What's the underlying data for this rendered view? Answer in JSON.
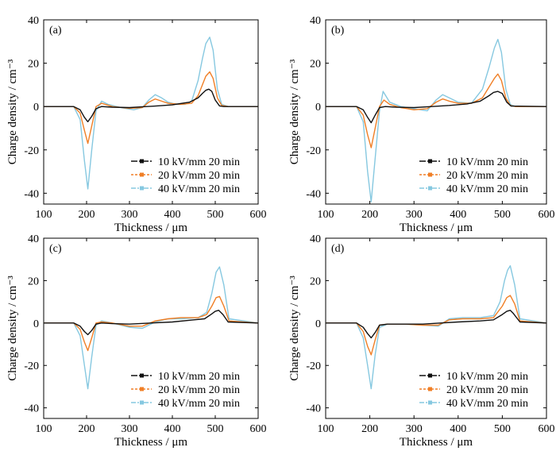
{
  "colors": {
    "series_10": "#111111",
    "series_20": "#f07f26",
    "series_40": "#86c8e0",
    "axis": "#000000"
  },
  "chart_data": [
    {
      "type": "line",
      "panel_label": "(a)",
      "xlabel": "Thickness / μm",
      "ylabel": "Charge density / cm⁻³",
      "xlim": [
        100,
        600
      ],
      "ylim": [
        -45,
        40
      ],
      "xticks": [
        100,
        200,
        300,
        400,
        500,
        600
      ],
      "yticks": [
        -40,
        -20,
        0,
        20,
        40
      ],
      "legend_position": "bottom-right",
      "series": [
        {
          "name": "10 kV/mm 20 min",
          "color_key": "series_10",
          "x": [
            100,
            170,
            185,
            195,
            203,
            212,
            222,
            235,
            260,
            300,
            340,
            360,
            380,
            400,
            440,
            460,
            470,
            478,
            485,
            492,
            500,
            510,
            520,
            600
          ],
          "y": [
            0,
            0,
            -1.5,
            -5,
            -7,
            -4.5,
            -1,
            0,
            -0.3,
            -0.5,
            0,
            0.2,
            0.5,
            0.8,
            2,
            4,
            6,
            7.5,
            8,
            7,
            3,
            0.3,
            0,
            0
          ]
        },
        {
          "name": "20 kV/mm 20 min",
          "color_key": "series_20",
          "x": [
            100,
            170,
            185,
            195,
            203,
            212,
            222,
            235,
            260,
            300,
            330,
            345,
            360,
            375,
            390,
            420,
            445,
            460,
            470,
            478,
            487,
            495,
            505,
            515,
            530,
            600
          ],
          "y": [
            0,
            0,
            -3,
            -11,
            -17,
            -9,
            0,
            1.5,
            0,
            -0.8,
            -0.5,
            2,
            3.5,
            2.5,
            1.5,
            1,
            1.5,
            5,
            10,
            14,
            16,
            13,
            4,
            0.5,
            0,
            0
          ]
        },
        {
          "name": "40 kV/mm 20 min",
          "color_key": "series_40",
          "x": [
            100,
            170,
            185,
            195,
            203,
            212,
            222,
            235,
            250,
            280,
            310,
            330,
            345,
            360,
            375,
            390,
            410,
            430,
            445,
            460,
            470,
            478,
            487,
            495,
            505,
            515,
            530,
            600
          ],
          "y": [
            0,
            0,
            -6,
            -25,
            -38,
            -20,
            -2,
            2.5,
            1,
            -0.5,
            -1.5,
            -0.5,
            3,
            5.5,
            4,
            2,
            1,
            1,
            2.5,
            12,
            22,
            29,
            32,
            26,
            8,
            1,
            0,
            0
          ]
        }
      ]
    },
    {
      "type": "line",
      "panel_label": "(b)",
      "xlabel": "Thickness / μm",
      "ylabel": "Charge density / cm⁻³",
      "xlim": [
        100,
        600
      ],
      "ylim": [
        -45,
        40
      ],
      "xticks": [
        100,
        200,
        300,
        400,
        500,
        600
      ],
      "yticks": [
        -40,
        -20,
        0,
        20,
        40
      ],
      "legend_position": "bottom-right",
      "series": [
        {
          "name": "10 kV/mm 20 min",
          "color_key": "series_10",
          "x": [
            100,
            170,
            185,
            195,
            203,
            212,
            222,
            235,
            260,
            300,
            340,
            380,
            420,
            450,
            470,
            480,
            490,
            500,
            510,
            520,
            600
          ],
          "y": [
            0,
            0,
            -1.5,
            -5,
            -7.5,
            -4,
            -0.5,
            0,
            -0.3,
            -0.5,
            0,
            0.5,
            1.2,
            2.5,
            5,
            6.5,
            7,
            6,
            2,
            0.2,
            0
          ]
        },
        {
          "name": "20 kV/mm 20 min",
          "color_key": "series_20",
          "x": [
            100,
            170,
            185,
            195,
            203,
            212,
            222,
            232,
            245,
            270,
            300,
            330,
            350,
            365,
            380,
            400,
            430,
            455,
            470,
            482,
            490,
            498,
            508,
            518,
            530,
            600
          ],
          "y": [
            0,
            0,
            -4,
            -13,
            -19,
            -10,
            0,
            3,
            1,
            -0.5,
            -1.5,
            -1,
            2,
            3.5,
            2.5,
            1.5,
            1.5,
            4,
            9,
            13,
            15,
            12,
            4,
            0.5,
            0,
            0
          ]
        },
        {
          "name": "40 kV/mm 20 min",
          "color_key": "series_40",
          "x": [
            100,
            170,
            185,
            195,
            203,
            212,
            222,
            230,
            245,
            270,
            300,
            330,
            350,
            365,
            380,
            400,
            430,
            455,
            470,
            482,
            490,
            498,
            508,
            518,
            530,
            600
          ],
          "y": [
            0,
            0,
            -7,
            -30,
            -44,
            -24,
            -2,
            7,
            2,
            0,
            -1,
            -2,
            3,
            5.5,
            4,
            2,
            1.5,
            8,
            18,
            27,
            31,
            25,
            8,
            1,
            0,
            0
          ]
        }
      ]
    },
    {
      "type": "line",
      "panel_label": "(c)",
      "xlabel": "Thickness / μm",
      "ylabel": "Charge density / cm⁻³",
      "xlim": [
        100,
        600
      ],
      "ylim": [
        -45,
        40
      ],
      "xticks": [
        100,
        200,
        300,
        400,
        500,
        600
      ],
      "yticks": [
        -40,
        -20,
        0,
        20,
        40
      ],
      "legend_position": "bottom-right",
      "series": [
        {
          "name": "10 kV/mm 20 min",
          "color_key": "series_10",
          "x": [
            100,
            170,
            185,
            195,
            203,
            212,
            222,
            235,
            260,
            300,
            350,
            400,
            450,
            475,
            490,
            500,
            508,
            518,
            530,
            600
          ],
          "y": [
            0,
            0,
            -1.5,
            -4,
            -5.5,
            -3.5,
            -0.5,
            0,
            -0.3,
            -0.5,
            0,
            0.5,
            1.5,
            2,
            4,
            5.5,
            6,
            4,
            0.5,
            0
          ]
        },
        {
          "name": "20 kV/mm 20 min",
          "color_key": "series_20",
          "x": [
            100,
            170,
            185,
            195,
            203,
            212,
            222,
            235,
            260,
            300,
            330,
            360,
            390,
            420,
            460,
            480,
            492,
            502,
            510,
            520,
            532,
            600
          ],
          "y": [
            0,
            0,
            -3,
            -9,
            -13,
            -7,
            0,
            0.5,
            0,
            -1.5,
            -1.5,
            1,
            2,
            2.5,
            2.5,
            4,
            8,
            12,
            12.5,
            8,
            1,
            0
          ]
        },
        {
          "name": "40 kV/mm 20 min",
          "color_key": "series_40",
          "x": [
            100,
            170,
            185,
            195,
            203,
            212,
            222,
            235,
            260,
            300,
            330,
            360,
            390,
            420,
            460,
            480,
            492,
            502,
            510,
            520,
            532,
            600
          ],
          "y": [
            0,
            0,
            -6,
            -20,
            -31,
            -16,
            -1,
            1,
            0,
            -2,
            -2.5,
            0.5,
            2,
            2,
            2.5,
            5,
            14,
            24,
            26.5,
            18,
            2,
            0
          ]
        }
      ]
    },
    {
      "type": "line",
      "panel_label": "(d)",
      "xlabel": "Thickness / μm",
      "ylabel": "Charge density / cm⁻³",
      "xlim": [
        100,
        600
      ],
      "ylim": [
        -45,
        40
      ],
      "xticks": [
        100,
        200,
        300,
        400,
        500,
        600
      ],
      "yticks": [
        -40,
        -20,
        0,
        20,
        40
      ],
      "legend_position": "bottom-right",
      "series": [
        {
          "name": "10 kV/mm 20 min",
          "color_key": "series_10",
          "x": [
            100,
            170,
            185,
            195,
            203,
            212,
            222,
            240,
            280,
            320,
            360,
            400,
            450,
            480,
            500,
            510,
            518,
            525,
            540,
            600
          ],
          "y": [
            0,
            0,
            -2,
            -5,
            -7,
            -4.5,
            -1,
            -0.5,
            -0.5,
            -0.5,
            0,
            0.5,
            1,
            1.5,
            4,
            5.5,
            6,
            4.5,
            0.5,
            0
          ]
        },
        {
          "name": "20 kV/mm 20 min",
          "color_key": "series_20",
          "x": [
            100,
            170,
            185,
            195,
            203,
            212,
            222,
            240,
            280,
            320,
            355,
            380,
            410,
            450,
            480,
            500,
            510,
            518,
            528,
            540,
            600
          ],
          "y": [
            0,
            0,
            -4,
            -11,
            -15,
            -8,
            -1,
            -0.5,
            -0.5,
            -1,
            -1,
            1.5,
            2,
            2,
            2.5,
            8,
            12,
            13,
            9,
            1,
            0
          ]
        },
        {
          "name": "40 kV/mm 20 min",
          "color_key": "series_40",
          "x": [
            100,
            170,
            185,
            195,
            203,
            212,
            222,
            240,
            280,
            320,
            355,
            380,
            410,
            450,
            480,
            495,
            505,
            512,
            518,
            528,
            540,
            600
          ],
          "y": [
            0,
            0,
            -7,
            -20,
            -31,
            -15,
            -2,
            -0.5,
            -0.5,
            -1,
            -1.5,
            2,
            2.5,
            2.5,
            3.5,
            10,
            20,
            25,
            27,
            18,
            2,
            0
          ]
        }
      ]
    }
  ]
}
